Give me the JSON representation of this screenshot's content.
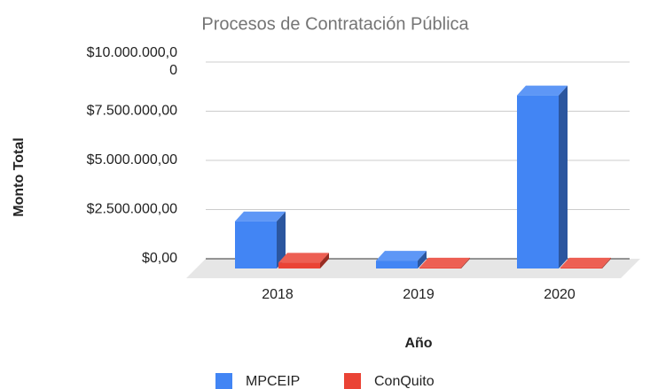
{
  "chart_data": {
    "type": "bar3d",
    "title": "Procesos de Contratación Pública",
    "x_label": "Año",
    "y_label": "Monto Total",
    "categories": [
      "2018",
      "2019",
      "2020"
    ],
    "series": [
      {
        "name": "MPCEIP",
        "color": "#4285f4",
        "values": [
          2400000,
          400000,
          8800000
        ]
      },
      {
        "name": "ConQuito",
        "color": "#ea4335",
        "values": [
          300000,
          50000,
          50000
        ]
      }
    ],
    "ylim": [
      0,
      10000000
    ],
    "yticks": [
      {
        "value": 0,
        "label": "$0,00"
      },
      {
        "value": 2500000,
        "label": "$2.500.000,00"
      },
      {
        "value": 5000000,
        "label": "$5.000.000,00"
      },
      {
        "value": 7500000,
        "label": "$7.500.000,00"
      },
      {
        "value": 10000000,
        "label": "$10.000.000,00"
      }
    ],
    "grid": true,
    "legend": "bottom"
  }
}
